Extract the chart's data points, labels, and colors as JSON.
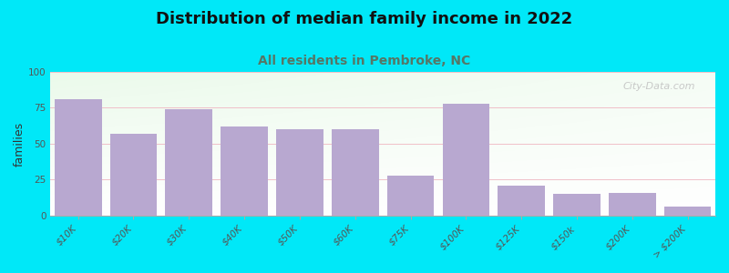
{
  "title": "Distribution of median family income in 2022",
  "subtitle": "All residents in Pembroke, NC",
  "ylabel": "families",
  "categories": [
    "$10K",
    "$20K",
    "$30K",
    "$40K",
    "$50K",
    "$60K",
    "$75K",
    "$100K",
    "$125K",
    "$150k",
    "$200K",
    "> $200K"
  ],
  "values": [
    81,
    57,
    74,
    62,
    60,
    60,
    28,
    78,
    21,
    15,
    16,
    6
  ],
  "bar_color": "#b8a8d0",
  "background_outer": "#00e8f8",
  "grid_color": "#f0c0c8",
  "title_fontsize": 13,
  "subtitle_fontsize": 10,
  "ylabel_fontsize": 9,
  "tick_fontsize": 7.5,
  "ylim": [
    0,
    100
  ],
  "yticks": [
    0,
    25,
    50,
    75,
    100
  ],
  "watermark": "City-Data.com",
  "subtitle_color": "#557766",
  "title_color": "#111111"
}
